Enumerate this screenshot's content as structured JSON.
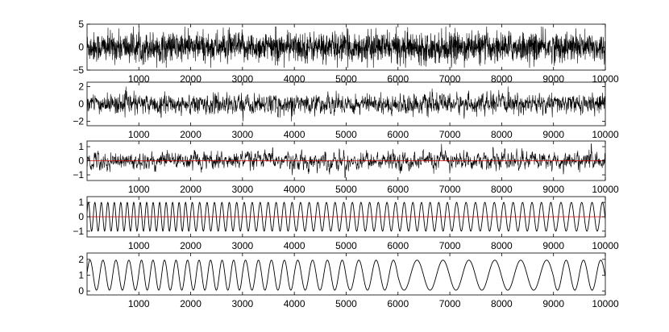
{
  "chart_data": [
    {
      "type": "line",
      "xlim": [
        1,
        10000
      ],
      "ylim": [
        -5,
        5
      ],
      "x_ticks": [
        1000,
        2000,
        3000,
        4000,
        5000,
        6000,
        7000,
        8000,
        9000,
        10000
      ],
      "y_ticks": [
        -5,
        0,
        5
      ],
      "grid": false,
      "series": [
        {
          "signal": "broadband-noise",
          "amplitude": 1.6,
          "peak": 4.5,
          "color": "#000000"
        }
      ]
    },
    {
      "type": "line",
      "xlim": [
        1,
        10000
      ],
      "ylim": [
        -2.5,
        2.5
      ],
      "x_ticks": [
        1000,
        2000,
        3000,
        4000,
        5000,
        6000,
        7000,
        8000,
        9000,
        10000
      ],
      "y_ticks": [
        -2,
        0,
        2
      ],
      "grid": false,
      "series": [
        {
          "signal": "band-limited-noise",
          "amplitude": 0.6,
          "peak": 2.0,
          "color": "#000000"
        }
      ]
    },
    {
      "type": "line",
      "xlim": [
        1,
        10000
      ],
      "ylim": [
        -1.4,
        1.4
      ],
      "x_ticks": [
        1000,
        2000,
        3000,
        4000,
        5000,
        6000,
        7000,
        8000,
        9000,
        10000
      ],
      "y_ticks": [
        -1,
        0,
        1
      ],
      "grid": false,
      "series": [
        {
          "signal": "smoothed-noise",
          "amplitude": 0.4,
          "peak": 1.2,
          "color": "#000000"
        },
        {
          "signal": "baseline",
          "value": 0,
          "color": "#cc0000"
        }
      ]
    },
    {
      "type": "line",
      "xlim": [
        1,
        10000
      ],
      "ylim": [
        -1.4,
        1.4
      ],
      "x_ticks": [
        1000,
        2000,
        3000,
        4000,
        5000,
        6000,
        7000,
        8000,
        9000,
        10000
      ],
      "y_ticks": [
        -1,
        0,
        1
      ],
      "grid": false,
      "series": [
        {
          "signal": "oscillation",
          "amplitude": 1.0,
          "cycles_per_1000": [
            8,
            8,
            7,
            6.5,
            6,
            6,
            6,
            5.5,
            5.5,
            5
          ],
          "color": "#000000"
        },
        {
          "signal": "baseline",
          "value": 0,
          "color": "#cc0000"
        }
      ]
    },
    {
      "type": "line",
      "xlim": [
        1,
        10000
      ],
      "ylim": [
        -0.25,
        2.4
      ],
      "x_ticks": [
        1000,
        2000,
        3000,
        4000,
        5000,
        6000,
        7000,
        8000,
        9000,
        10000
      ],
      "y_ticks": [
        0,
        1,
        2
      ],
      "grid": false,
      "series": [
        {
          "signal": "oscillation",
          "mean": 1.0,
          "amplitude": 0.95,
          "cycles_per_1000": [
            4,
            4.5,
            4.5,
            4,
            3.5,
            3,
            2,
            2,
            2,
            3
          ],
          "color": "#000000"
        }
      ]
    }
  ]
}
